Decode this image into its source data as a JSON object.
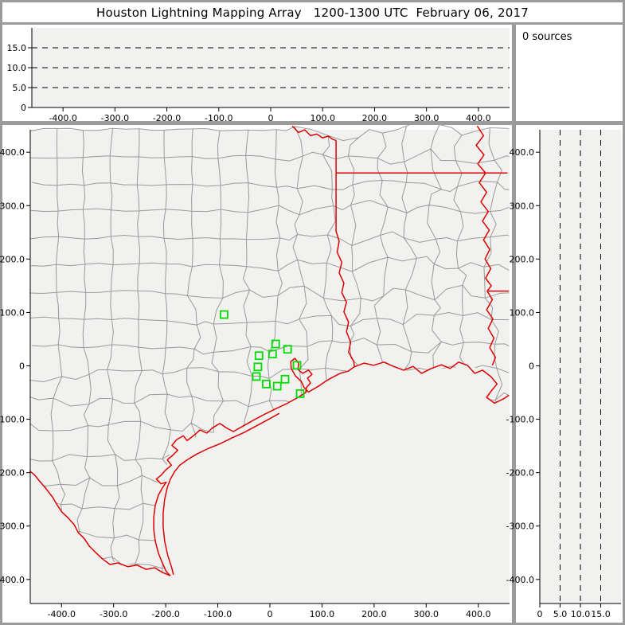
{
  "title": "Houston Lightning Mapping Array   1200-1300 UTC  February 06, 2017",
  "counter": {
    "label": "0 sources"
  },
  "colors": {
    "frame": "#9b9b9b",
    "panel_bg": "#ffffff",
    "plot_bg": "#f1f1ef",
    "axis": "#000000",
    "grid_dash": "#000000",
    "county": "#999999",
    "state_border": "#dd0000",
    "station": "#00dd00"
  },
  "chart_data": [
    {
      "panel": "top_altitude_ew",
      "type": "scatter",
      "title": "",
      "xlim": [
        -460,
        460
      ],
      "ylim": [
        0,
        20
      ],
      "x_tick_values": [
        -400,
        -300,
        -200,
        -100,
        0,
        100,
        200,
        300,
        400
      ],
      "x_tick_labels": [
        "-400.0",
        "-300.0",
        "-200.0",
        "-100.0",
        "0",
        "100.0",
        "200.0",
        "300.0",
        "400.0"
      ],
      "y_tick_values": [
        0,
        5,
        10,
        15
      ],
      "y_tick_labels": [
        "0",
        "5.0",
        "10.0",
        "15.0"
      ],
      "dashed_y": [
        5,
        10,
        15
      ],
      "points": []
    },
    {
      "panel": "map_plan_view",
      "type": "scatter",
      "title": "",
      "xlim": [
        -460,
        460
      ],
      "ylim": [
        -445,
        442
      ],
      "x_tick_values": [
        -400,
        -300,
        -200,
        -100,
        0,
        100,
        200,
        300,
        400
      ],
      "x_tick_labels": [
        "-400.0",
        "-300.0",
        "-200.0",
        "-100.0",
        "0",
        "100.0",
        "200.0",
        "300.0",
        "400.0"
      ],
      "y_tick_values": [
        400,
        300,
        200,
        100,
        0,
        -100,
        -200,
        -300,
        -400
      ],
      "y_tick_labels": [
        "400.0",
        "300.0",
        "200.0",
        "100.0",
        "0",
        "-100.0",
        "-200.0",
        "-300.0",
        "-400.0"
      ],
      "stations_xy_km": [
        [
          11,
          41
        ],
        [
          34,
          31
        ],
        [
          5,
          22
        ],
        [
          -21,
          19
        ],
        [
          -23,
          -2
        ],
        [
          52,
          1
        ],
        [
          -26,
          -20
        ],
        [
          29,
          -25
        ],
        [
          14,
          -38
        ],
        [
          58,
          -52
        ],
        [
          -7,
          -34
        ],
        [
          -88,
          96
        ]
      ],
      "points": []
    },
    {
      "panel": "right_altitude_ns",
      "type": "scatter",
      "title": "",
      "xlim": [
        0,
        20
      ],
      "ylim": [
        -445,
        442
      ],
      "x_tick_values": [
        0,
        5,
        10,
        15
      ],
      "x_tick_labels": [
        "0",
        "5.0",
        "10.0",
        "15.0"
      ],
      "y_tick_values": [
        400,
        300,
        200,
        100,
        0,
        -100,
        -200,
        -300,
        -400
      ],
      "y_tick_labels": [
        "400.0",
        "300.0",
        "200.0",
        "100.0",
        "0",
        "-100.0",
        "-200.0",
        "-300.0",
        "-400.0"
      ],
      "dashed_x": [
        5,
        10,
        15
      ],
      "points": []
    }
  ],
  "map": {
    "land_polygon_km": [
      [
        -461,
        460
      ],
      [
        459,
        460
      ],
      [
        459,
        -55
      ],
      [
        431,
        -70
      ],
      [
        416,
        -59
      ],
      [
        425,
        -47
      ],
      [
        436,
        -34
      ],
      [
        408,
        -8
      ],
      [
        379,
        1
      ],
      [
        346,
        -5
      ],
      [
        310,
        -5
      ],
      [
        291,
        -14
      ],
      [
        257,
        -8
      ],
      [
        219,
        7
      ],
      [
        181,
        5
      ],
      [
        162,
        -2
      ],
      [
        135,
        -14
      ],
      [
        107,
        -29
      ],
      [
        83,
        -44
      ],
      [
        69,
        -50
      ],
      [
        34,
        -70
      ],
      [
        -30,
        -101
      ],
      [
        -70,
        -123
      ],
      [
        -121,
        -126
      ],
      [
        -159,
        -140
      ],
      [
        -188,
        -149
      ],
      [
        -200,
        -195
      ],
      [
        -218,
        -212
      ],
      [
        -206,
        -228
      ],
      [
        -220,
        -261
      ],
      [
        -223,
        -306
      ],
      [
        -214,
        -351
      ],
      [
        -199,
        -385
      ],
      [
        -191,
        -393
      ],
      [
        -221,
        -378
      ],
      [
        -255,
        -373
      ],
      [
        -292,
        -369
      ],
      [
        -322,
        -361
      ],
      [
        -347,
        -337
      ],
      [
        -368,
        -312
      ],
      [
        -387,
        -285
      ],
      [
        -408,
        -261
      ],
      [
        -429,
        -231
      ],
      [
        -452,
        -204
      ],
      [
        -461,
        -197
      ]
    ],
    "state_lines_km": {
      "red_river": [
        [
          43,
          449
        ],
        [
          55,
          437
        ],
        [
          67,
          442
        ],
        [
          78,
          431
        ],
        [
          90,
          434
        ],
        [
          101,
          427
        ],
        [
          112,
          430
        ],
        [
          121,
          424
        ],
        [
          127,
          422
        ]
      ],
      "texas_east_border_and_sabine": [
        [
          127,
          422
        ],
        [
          127,
          252
        ],
        [
          133,
          233
        ],
        [
          129,
          213
        ],
        [
          138,
          194
        ],
        [
          133,
          174
        ],
        [
          142,
          155
        ],
        [
          138,
          137
        ],
        [
          147,
          119
        ],
        [
          142,
          101
        ],
        [
          151,
          82
        ],
        [
          147,
          64
        ],
        [
          155,
          44
        ],
        [
          151,
          26
        ],
        [
          161,
          8
        ],
        [
          162,
          -2
        ]
      ],
      "arkansas_louisiana_line": [
        [
          127,
          361
        ],
        [
          456,
          361
        ]
      ],
      "mississippi_river": [
        [
          398,
          449
        ],
        [
          410,
          431
        ],
        [
          396,
          413
        ],
        [
          411,
          395
        ],
        [
          399,
          378
        ],
        [
          414,
          361
        ],
        [
          402,
          343
        ],
        [
          416,
          325
        ],
        [
          405,
          307
        ],
        [
          419,
          289
        ],
        [
          408,
          271
        ],
        [
          421,
          254
        ],
        [
          410,
          236
        ],
        [
          422,
          218
        ],
        [
          413,
          200
        ],
        [
          424,
          182
        ],
        [
          414,
          164
        ],
        [
          425,
          150
        ],
        [
          417,
          140
        ],
        [
          427,
          124
        ],
        [
          416,
          105
        ],
        [
          428,
          88
        ],
        [
          419,
          70
        ],
        [
          430,
          52
        ],
        [
          422,
          34
        ],
        [
          433,
          16
        ],
        [
          427,
          1
        ]
      ],
      "louisiana_mississippi_line": [
        [
          417,
          140
        ],
        [
          459,
          140
        ]
      ],
      "louisiana_coast": [
        [
          162,
          -2
        ],
        [
          181,
          5
        ],
        [
          199,
          1
        ],
        [
          219,
          7
        ],
        [
          237,
          -1
        ],
        [
          257,
          -8
        ],
        [
          275,
          -1
        ],
        [
          291,
          -14
        ],
        [
          310,
          -5
        ],
        [
          329,
          2
        ],
        [
          346,
          -5
        ],
        [
          362,
          7
        ],
        [
          379,
          1
        ],
        [
          393,
          -14
        ],
        [
          408,
          -8
        ],
        [
          424,
          -20
        ],
        [
          436,
          -34
        ],
        [
          425,
          -47
        ],
        [
          416,
          -59
        ],
        [
          431,
          -70
        ],
        [
          448,
          -62
        ],
        [
          459,
          -55
        ]
      ],
      "texas_coast_mainland": [
        [
          162,
          -2
        ],
        [
          150,
          -10
        ],
        [
          135,
          -14
        ],
        [
          119,
          -22
        ],
        [
          107,
          -29
        ],
        [
          95,
          -37
        ],
        [
          83,
          -44
        ],
        [
          74,
          -49
        ],
        [
          66,
          -41
        ],
        [
          60,
          -29
        ],
        [
          49,
          -19
        ],
        [
          41,
          -5
        ],
        [
          40,
          8
        ],
        [
          48,
          14
        ],
        [
          55,
          5
        ],
        [
          54,
          -7
        ],
        [
          63,
          -14
        ],
        [
          74,
          -8
        ],
        [
          81,
          -16
        ],
        [
          72,
          -23
        ],
        [
          78,
          -32
        ],
        [
          70,
          -41
        ],
        [
          69,
          -50
        ],
        [
          54,
          -59
        ],
        [
          34,
          -70
        ],
        [
          12,
          -80
        ],
        [
          -9,
          -90
        ],
        [
          -30,
          -101
        ],
        [
          -52,
          -113
        ],
        [
          -70,
          -123
        ],
        [
          -82,
          -117
        ],
        [
          -96,
          -108
        ],
        [
          -110,
          -116
        ],
        [
          -121,
          -126
        ],
        [
          -134,
          -120
        ],
        [
          -147,
          -131
        ],
        [
          -159,
          -140
        ],
        [
          -166,
          -131
        ],
        [
          -179,
          -138
        ],
        [
          -188,
          -149
        ],
        [
          -177,
          -158
        ],
        [
          -186,
          -167
        ],
        [
          -197,
          -176
        ],
        [
          -189,
          -186
        ],
        [
          -200,
          -195
        ],
        [
          -208,
          -204
        ],
        [
          -218,
          -212
        ],
        [
          -209,
          -221
        ],
        [
          -199,
          -218
        ],
        [
          -206,
          -228
        ],
        [
          -214,
          -242
        ],
        [
          -220,
          -261
        ],
        [
          -223,
          -283
        ],
        [
          -223,
          -306
        ],
        [
          -220,
          -328
        ],
        [
          -214,
          -351
        ],
        [
          -206,
          -370
        ],
        [
          -199,
          -385
        ],
        [
          -191,
          -393
        ]
      ],
      "barrier_islands": [
        [
          18,
          -89
        ],
        [
          -4,
          -101
        ],
        [
          -27,
          -113
        ],
        [
          -50,
          -125
        ],
        [
          -73,
          -135
        ],
        [
          -96,
          -146
        ],
        [
          -119,
          -155
        ],
        [
          -140,
          -165
        ],
        [
          -159,
          -176
        ],
        [
          -173,
          -186
        ],
        [
          -183,
          -198
        ],
        [
          -191,
          -212
        ],
        [
          -197,
          -228
        ],
        [
          -202,
          -250
        ],
        [
          -205,
          -276
        ],
        [
          -205,
          -301
        ],
        [
          -202,
          -328
        ],
        [
          -196,
          -355
        ],
        [
          -189,
          -376
        ],
        [
          -185,
          -391
        ]
      ],
      "rio_grande": [
        [
          -191,
          -393
        ],
        [
          -206,
          -387
        ],
        [
          -221,
          -378
        ],
        [
          -238,
          -381
        ],
        [
          -255,
          -373
        ],
        [
          -273,
          -376
        ],
        [
          -292,
          -369
        ],
        [
          -307,
          -372
        ],
        [
          -322,
          -361
        ],
        [
          -335,
          -349
        ],
        [
          -347,
          -337
        ],
        [
          -356,
          -324
        ],
        [
          -368,
          -312
        ],
        [
          -376,
          -297
        ],
        [
          -387,
          -285
        ],
        [
          -399,
          -274
        ],
        [
          -408,
          -261
        ],
        [
          -417,
          -246
        ],
        [
          -429,
          -231
        ],
        [
          -442,
          -216
        ],
        [
          -452,
          -204
        ],
        [
          -461,
          -197
        ]
      ]
    }
  }
}
